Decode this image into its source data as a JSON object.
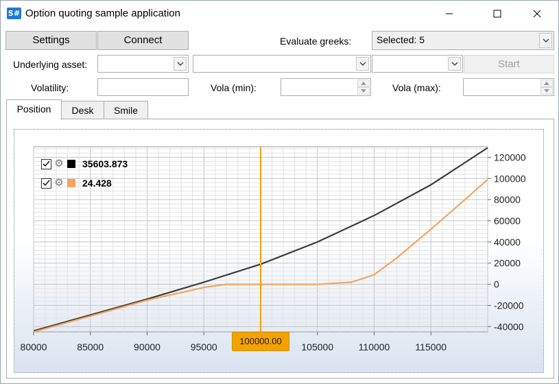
{
  "window": {
    "title": "Option quoting sample application",
    "icon_text": "S#"
  },
  "toolbar": {
    "settings_label": "Settings",
    "connect_label": "Connect",
    "evaluate_greeks_label": "Evaluate greeks:",
    "evaluate_greeks_value": "Selected: 5"
  },
  "params": {
    "underlying_label": "Underlying asset:",
    "underlying_value": "",
    "combo2_value": "",
    "combo3_value": "",
    "start_label": "Start",
    "volatility_label": "Volatility:",
    "volatility_value": "",
    "vola_min_label": "Vola (min):",
    "vola_min_value": "",
    "vola_max_label": "Vola (max):",
    "vola_max_value": ""
  },
  "tabs": [
    {
      "label": "Position",
      "active": true
    },
    {
      "label": "Desk",
      "active": false
    },
    {
      "label": "Smile",
      "active": false
    }
  ],
  "legend": [
    {
      "value": "35603.873",
      "color": "#000000",
      "checked": true
    },
    {
      "value": "24.428",
      "color": "#f4a460",
      "checked": true
    }
  ],
  "cursor": {
    "x_value": 100000,
    "label": "100000.00",
    "color": "#f4a200"
  },
  "chart_data": {
    "type": "line",
    "xlim": [
      80000,
      120000
    ],
    "ylim": [
      -45000,
      130000
    ],
    "x_ticks": [
      80000,
      85000,
      90000,
      95000,
      100000,
      105000,
      110000,
      115000
    ],
    "x_tick_labels": [
      "80000",
      "85000",
      "90000",
      "95000",
      "",
      "105000",
      "110000",
      "115000"
    ],
    "y_ticks": [
      -40000,
      -20000,
      0,
      20000,
      40000,
      60000,
      80000,
      100000,
      120000
    ],
    "y_tick_labels": [
      "-40000",
      "-20000",
      "0",
      "20000",
      "40000",
      "60000",
      "80000",
      "100000",
      "120000"
    ],
    "grid": true,
    "series": [
      {
        "color": "#3a3a3a",
        "x": [
          80000,
          85000,
          90000,
          95000,
          100000,
          105000,
          110000,
          115000,
          120000
        ],
        "y": [
          -44000,
          -29000,
          -14000,
          2000,
          19000,
          40000,
          65000,
          94000,
          129000
        ]
      },
      {
        "color": "#f4a460",
        "x": [
          80000,
          85000,
          90000,
          95000,
          97000,
          100000,
          105000,
          108000,
          110000,
          112000,
          115000,
          118000,
          120000
        ],
        "y": [
          -45000,
          -30000,
          -15000,
          -3000,
          0,
          0,
          0,
          2000,
          9000,
          25000,
          52000,
          80000,
          99000
        ]
      }
    ]
  }
}
